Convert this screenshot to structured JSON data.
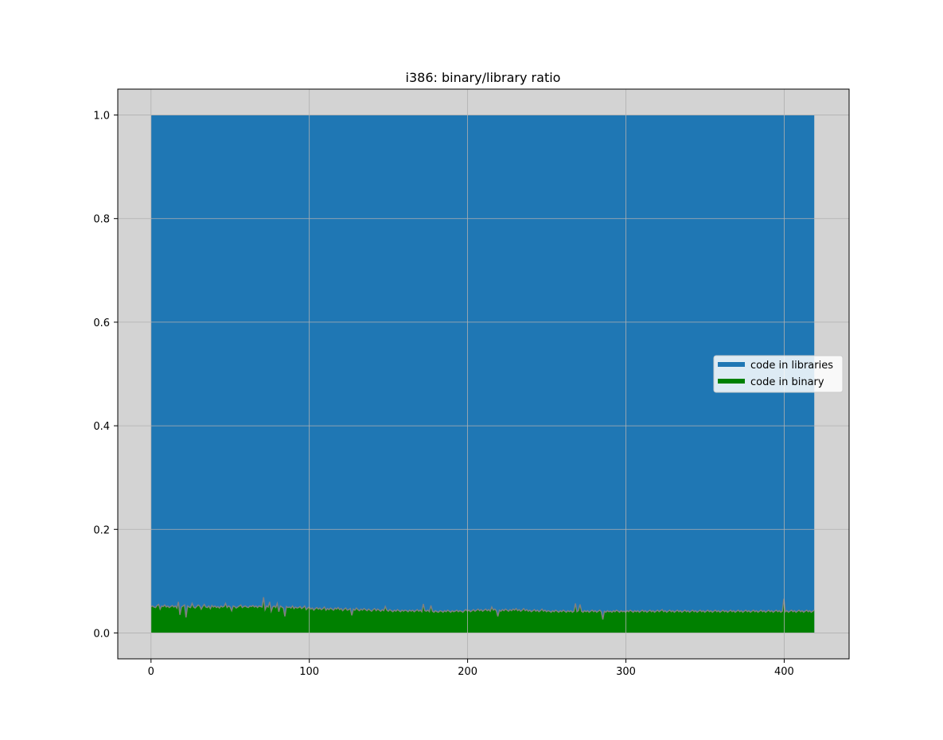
{
  "chart_data": {
    "type": "area",
    "title": "i386: binary/library ratio",
    "xlabel": "",
    "ylabel": "",
    "xlim": [
      -21,
      441
    ],
    "ylim": [
      -0.05,
      1.05
    ],
    "xticks": [
      0,
      100,
      200,
      300,
      400
    ],
    "xtick_labels": [
      "0",
      "100",
      "200",
      "300",
      "400"
    ],
    "yticks": [
      0.0,
      0.2,
      0.4,
      0.6,
      0.8,
      1.0
    ],
    "ytick_labels": [
      "0.0",
      "0.2",
      "0.4",
      "0.6",
      "0.8",
      "1.0"
    ],
    "grid": true,
    "legend_position": "center-right",
    "background": "#d3d3d3",
    "series": [
      {
        "name": "code in libraries",
        "color": "#1f77b4",
        "x_start": 0,
        "x_end": 419,
        "values": [
          1.0
        ]
      },
      {
        "name": "code in binary",
        "color": "#008000",
        "line_color": "#808080",
        "x_start": 0,
        "x_end": 419,
        "values": [
          0.051,
          0.052,
          0.05,
          0.049,
          0.053,
          0.055,
          0.046,
          0.052,
          0.051,
          0.054,
          0.05,
          0.052,
          0.049,
          0.051,
          0.053,
          0.05,
          0.052,
          0.048,
          0.06,
          0.035,
          0.05,
          0.052,
          0.054,
          0.03,
          0.052,
          0.05,
          0.049,
          0.057,
          0.05,
          0.048,
          0.051,
          0.054,
          0.052,
          0.046,
          0.051,
          0.055,
          0.05,
          0.049,
          0.052,
          0.047,
          0.053,
          0.05,
          0.052,
          0.049,
          0.051,
          0.048,
          0.052,
          0.05,
          0.051,
          0.057,
          0.049,
          0.052,
          0.05,
          0.043,
          0.052,
          0.051,
          0.048,
          0.05,
          0.052,
          0.054,
          0.049,
          0.051,
          0.052,
          0.05,
          0.049,
          0.052,
          0.051,
          0.053,
          0.05,
          0.052,
          0.049,
          0.052,
          0.051,
          0.05,
          0.069,
          0.045,
          0.052,
          0.05,
          0.06,
          0.042,
          0.05,
          0.052,
          0.049,
          0.057,
          0.041,
          0.052,
          0.05,
          0.048,
          0.032,
          0.051,
          0.049,
          0.05,
          0.048,
          0.052,
          0.047,
          0.05,
          0.048,
          0.049,
          0.051,
          0.047,
          0.049,
          0.052,
          0.045,
          0.048,
          0.05,
          0.046,
          0.048,
          0.044,
          0.047,
          0.049,
          0.046,
          0.048,
          0.045,
          0.047,
          0.05,
          0.044,
          0.047,
          0.045,
          0.048,
          0.046,
          0.044,
          0.048,
          0.046,
          0.049,
          0.045,
          0.047,
          0.043,
          0.046,
          0.048,
          0.044,
          0.045,
          0.047,
          0.034,
          0.046,
          0.044,
          0.048,
          0.045,
          0.043,
          0.046,
          0.044,
          0.047,
          0.045,
          0.043,
          0.046,
          0.044,
          0.042,
          0.045,
          0.047,
          0.043,
          0.046,
          0.044,
          0.042,
          0.045,
          0.043,
          0.051,
          0.044,
          0.042,
          0.045,
          0.043,
          0.041,
          0.044,
          0.042,
          0.045,
          0.043,
          0.041,
          0.044,
          0.042,
          0.044,
          0.043,
          0.041,
          0.044,
          0.042,
          0.044,
          0.041,
          0.043,
          0.045,
          0.042,
          0.044,
          0.041,
          0.056,
          0.043,
          0.042,
          0.044,
          0.041,
          0.053,
          0.042,
          0.04,
          0.043,
          0.041,
          0.04,
          0.043,
          0.042,
          0.04,
          0.043,
          0.041,
          0.044,
          0.042,
          0.04,
          0.043,
          0.041,
          0.042,
          0.044,
          0.041,
          0.043,
          0.042,
          0.04,
          0.043,
          0.045,
          0.042,
          0.044,
          0.041,
          0.043,
          0.045,
          0.042,
          0.044,
          0.046,
          0.043,
          0.045,
          0.042,
          0.044,
          0.046,
          0.043,
          0.045,
          0.042,
          0.05,
          0.044,
          0.046,
          0.043,
          0.032,
          0.044,
          0.042,
          0.045,
          0.043,
          0.046,
          0.044,
          0.042,
          0.045,
          0.043,
          0.046,
          0.044,
          0.047,
          0.043,
          0.045,
          0.042,
          0.044,
          0.047,
          0.043,
          0.045,
          0.042,
          0.044,
          0.041,
          0.043,
          0.045,
          0.042,
          0.044,
          0.041,
          0.043,
          0.046,
          0.042,
          0.044,
          0.041,
          0.043,
          0.042,
          0.04,
          0.043,
          0.041,
          0.044,
          0.042,
          0.04,
          0.043,
          0.041,
          0.044,
          0.042,
          0.04,
          0.043,
          0.041,
          0.043,
          0.04,
          0.042,
          0.057,
          0.041,
          0.043,
          0.055,
          0.042,
          0.04,
          0.043,
          0.041,
          0.043,
          0.04,
          0.042,
          0.044,
          0.041,
          0.043,
          0.04,
          0.042,
          0.044,
          0.041,
          0.026,
          0.042,
          0.04,
          0.043,
          0.041,
          0.042,
          0.04,
          0.043,
          0.041,
          0.044,
          0.042,
          0.04,
          0.043,
          0.041,
          0.042,
          0.04,
          0.043,
          0.041,
          0.044,
          0.042,
          0.04,
          0.043,
          0.041,
          0.043,
          0.04,
          0.042,
          0.044,
          0.041,
          0.043,
          0.04,
          0.042,
          0.044,
          0.041,
          0.043,
          0.04,
          0.042,
          0.044,
          0.041,
          0.043,
          0.045,
          0.041,
          0.043,
          0.04,
          0.042,
          0.044,
          0.041,
          0.043,
          0.04,
          0.042,
          0.044,
          0.041,
          0.043,
          0.04,
          0.042,
          0.044,
          0.041,
          0.043,
          0.04,
          0.042,
          0.044,
          0.041,
          0.043,
          0.04,
          0.042,
          0.044,
          0.041,
          0.043,
          0.04,
          0.042,
          0.044,
          0.041,
          0.043,
          0.04,
          0.042,
          0.044,
          0.041,
          0.043,
          0.04,
          0.042,
          0.044,
          0.041,
          0.043,
          0.04,
          0.042,
          0.044,
          0.041,
          0.043,
          0.04,
          0.042,
          0.044,
          0.041,
          0.043,
          0.04,
          0.042,
          0.044,
          0.041,
          0.043,
          0.04,
          0.042,
          0.044,
          0.041,
          0.043,
          0.04,
          0.042,
          0.044,
          0.041,
          0.043,
          0.04,
          0.042,
          0.044,
          0.041,
          0.043,
          0.04,
          0.042,
          0.044,
          0.041,
          0.043,
          0.04,
          0.042,
          0.066,
          0.041,
          0.043,
          0.04,
          0.042,
          0.044,
          0.041,
          0.043,
          0.04,
          0.042,
          0.044,
          0.041,
          0.043,
          0.04,
          0.042,
          0.044,
          0.041,
          0.043,
          0.04,
          0.042,
          0.044
        ]
      }
    ]
  }
}
